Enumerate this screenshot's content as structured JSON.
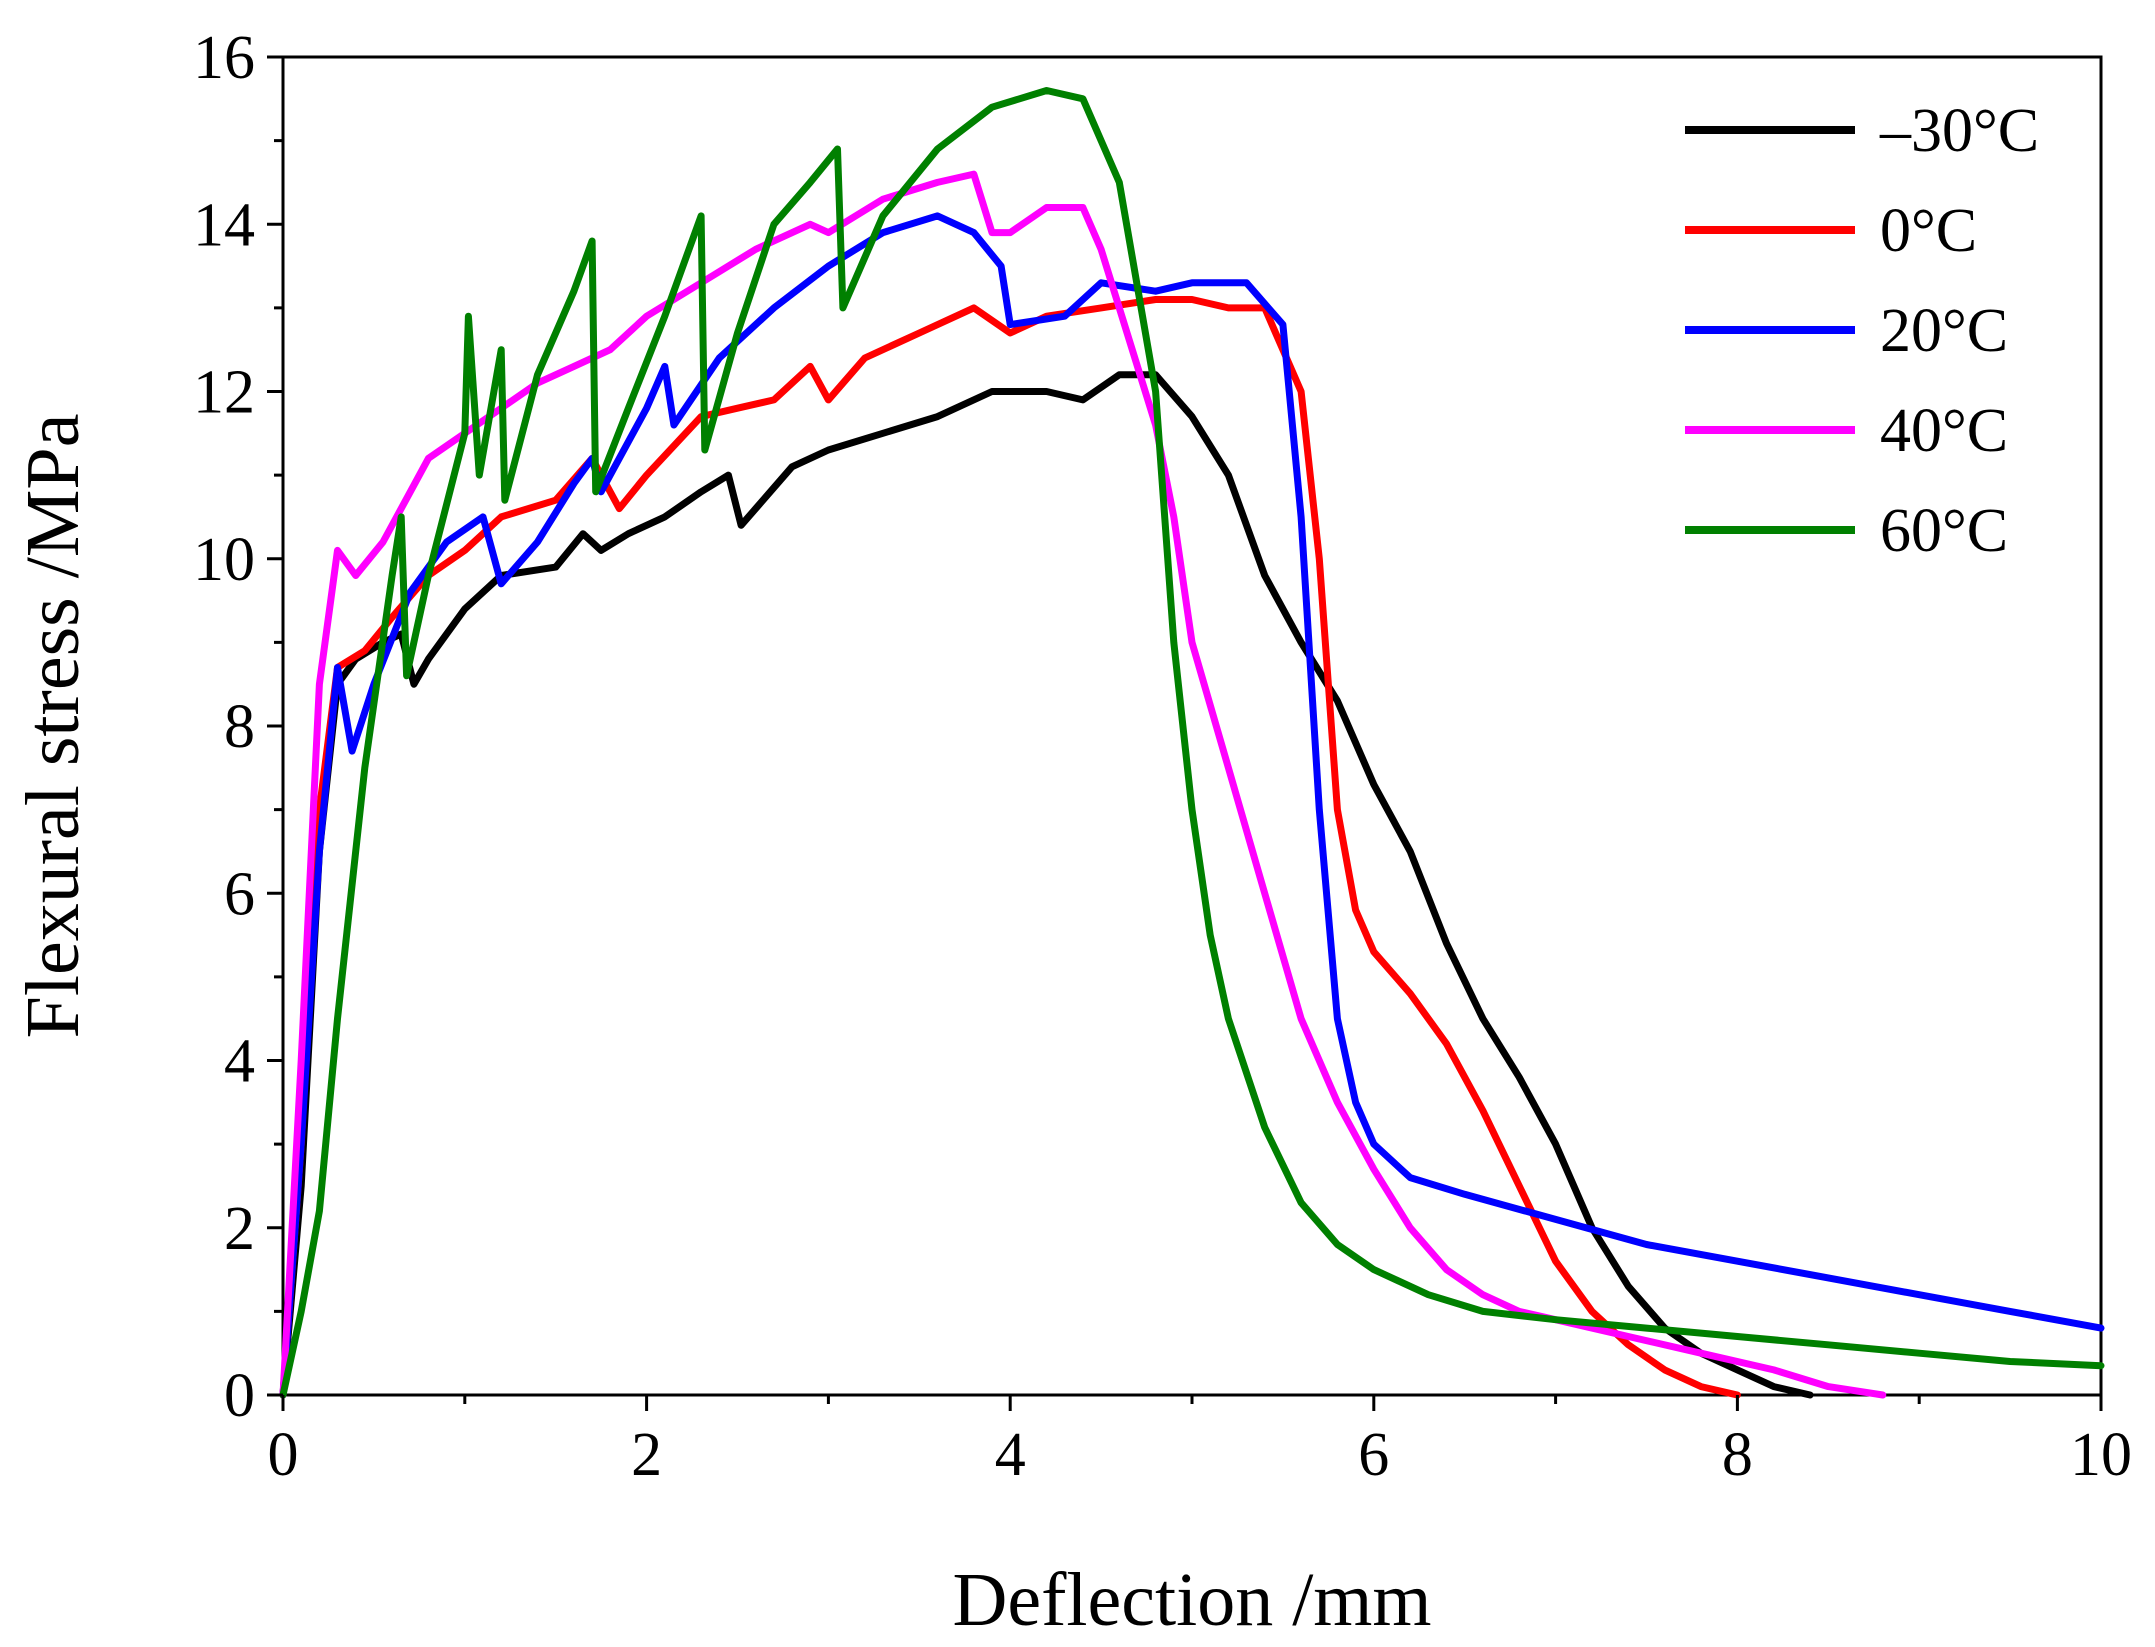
{
  "chart_data": {
    "type": "line",
    "title": "",
    "xlabel": "Deflection /mm",
    "ylabel": "Flexural stress /MPa",
    "xlim": [
      0,
      10
    ],
    "ylim": [
      0,
      16
    ],
    "x_ticks": [
      "0",
      "2",
      "4",
      "6",
      "8",
      "10"
    ],
    "y_ticks": [
      "0",
      "2",
      "4",
      "6",
      "8",
      "10",
      "12",
      "14",
      "16"
    ],
    "grid": false,
    "legend_position": "top-right",
    "series": [
      {
        "name": "–30°C",
        "color": "#000000",
        "points": [
          [
            0,
            0
          ],
          [
            0.1,
            2.5
          ],
          [
            0.2,
            6.5
          ],
          [
            0.3,
            8.5
          ],
          [
            0.4,
            8.8
          ],
          [
            0.55,
            9.0
          ],
          [
            0.65,
            9.1
          ],
          [
            0.72,
            8.5
          ],
          [
            0.8,
            8.8
          ],
          [
            1.0,
            9.4
          ],
          [
            1.2,
            9.8
          ],
          [
            1.5,
            9.9
          ],
          [
            1.65,
            10.3
          ],
          [
            1.75,
            10.1
          ],
          [
            1.9,
            10.3
          ],
          [
            2.1,
            10.5
          ],
          [
            2.3,
            10.8
          ],
          [
            2.45,
            11.0
          ],
          [
            2.52,
            10.4
          ],
          [
            2.6,
            10.6
          ],
          [
            2.8,
            11.1
          ],
          [
            3.0,
            11.3
          ],
          [
            3.3,
            11.5
          ],
          [
            3.6,
            11.7
          ],
          [
            3.9,
            12.0
          ],
          [
            4.2,
            12.0
          ],
          [
            4.4,
            11.9
          ],
          [
            4.6,
            12.2
          ],
          [
            4.8,
            12.2
          ],
          [
            5.0,
            11.7
          ],
          [
            5.2,
            11.0
          ],
          [
            5.4,
            9.8
          ],
          [
            5.6,
            9.0
          ],
          [
            5.8,
            8.3
          ],
          [
            6.0,
            7.3
          ],
          [
            6.2,
            6.5
          ],
          [
            6.4,
            5.4
          ],
          [
            6.6,
            4.5
          ],
          [
            6.8,
            3.8
          ],
          [
            7.0,
            3.0
          ],
          [
            7.2,
            2.0
          ],
          [
            7.4,
            1.3
          ],
          [
            7.6,
            0.8
          ],
          [
            7.8,
            0.5
          ],
          [
            8.0,
            0.3
          ],
          [
            8.2,
            0.1
          ],
          [
            8.4,
            0.0
          ]
        ]
      },
      {
        "name": "0°C",
        "color": "#ff0000",
        "points": [
          [
            0,
            0
          ],
          [
            0.1,
            3.0
          ],
          [
            0.2,
            7.0
          ],
          [
            0.3,
            8.7
          ],
          [
            0.45,
            8.9
          ],
          [
            0.6,
            9.3
          ],
          [
            0.8,
            9.8
          ],
          [
            1.0,
            10.1
          ],
          [
            1.2,
            10.5
          ],
          [
            1.5,
            10.7
          ],
          [
            1.7,
            11.2
          ],
          [
            1.85,
            10.6
          ],
          [
            2.0,
            11.0
          ],
          [
            2.3,
            11.7
          ],
          [
            2.5,
            11.8
          ],
          [
            2.7,
            11.9
          ],
          [
            2.9,
            12.3
          ],
          [
            3.0,
            11.9
          ],
          [
            3.2,
            12.4
          ],
          [
            3.5,
            12.7
          ],
          [
            3.8,
            13.0
          ],
          [
            4.0,
            12.7
          ],
          [
            4.2,
            12.9
          ],
          [
            4.5,
            13.0
          ],
          [
            4.8,
            13.1
          ],
          [
            5.0,
            13.1
          ],
          [
            5.2,
            13.0
          ],
          [
            5.4,
            13.0
          ],
          [
            5.6,
            12.0
          ],
          [
            5.7,
            10.0
          ],
          [
            5.8,
            7.0
          ],
          [
            5.9,
            5.8
          ],
          [
            6.0,
            5.3
          ],
          [
            6.2,
            4.8
          ],
          [
            6.4,
            4.2
          ],
          [
            6.6,
            3.4
          ],
          [
            6.8,
            2.5
          ],
          [
            7.0,
            1.6
          ],
          [
            7.2,
            1.0
          ],
          [
            7.4,
            0.6
          ],
          [
            7.6,
            0.3
          ],
          [
            7.8,
            0.1
          ],
          [
            8.0,
            0.0
          ]
        ]
      },
      {
        "name": "20°C",
        "color": "#0000ff",
        "points": [
          [
            0,
            0
          ],
          [
            0.1,
            3.0
          ],
          [
            0.2,
            6.5
          ],
          [
            0.3,
            8.7
          ],
          [
            0.38,
            7.7
          ],
          [
            0.5,
            8.5
          ],
          [
            0.7,
            9.6
          ],
          [
            0.9,
            10.2
          ],
          [
            1.1,
            10.5
          ],
          [
            1.2,
            9.7
          ],
          [
            1.4,
            10.2
          ],
          [
            1.6,
            10.9
          ],
          [
            1.7,
            11.2
          ],
          [
            1.75,
            10.8
          ],
          [
            2.0,
            11.8
          ],
          [
            2.1,
            12.3
          ],
          [
            2.15,
            11.6
          ],
          [
            2.4,
            12.4
          ],
          [
            2.7,
            13.0
          ],
          [
            3.0,
            13.5
          ],
          [
            3.3,
            13.9
          ],
          [
            3.6,
            14.1
          ],
          [
            3.8,
            13.9
          ],
          [
            3.95,
            13.5
          ],
          [
            4.0,
            12.8
          ],
          [
            4.3,
            12.9
          ],
          [
            4.5,
            13.3
          ],
          [
            4.8,
            13.2
          ],
          [
            5.0,
            13.3
          ],
          [
            5.3,
            13.3
          ],
          [
            5.5,
            12.8
          ],
          [
            5.6,
            10.5
          ],
          [
            5.7,
            7.0
          ],
          [
            5.8,
            4.5
          ],
          [
            5.9,
            3.5
          ],
          [
            6.0,
            3.0
          ],
          [
            6.2,
            2.6
          ],
          [
            6.5,
            2.4
          ],
          [
            7.0,
            2.1
          ],
          [
            7.5,
            1.8
          ],
          [
            8.0,
            1.6
          ],
          [
            8.5,
            1.4
          ],
          [
            9.0,
            1.2
          ],
          [
            9.5,
            1.0
          ],
          [
            10.0,
            0.8
          ]
        ]
      },
      {
        "name": "40°C",
        "color": "#ff00ff",
        "points": [
          [
            0,
            0
          ],
          [
            0.1,
            4.0
          ],
          [
            0.2,
            8.5
          ],
          [
            0.3,
            10.1
          ],
          [
            0.4,
            9.8
          ],
          [
            0.55,
            10.2
          ],
          [
            0.7,
            10.8
          ],
          [
            0.8,
            11.2
          ],
          [
            1.0,
            11.5
          ],
          [
            1.2,
            11.8
          ],
          [
            1.4,
            12.1
          ],
          [
            1.6,
            12.3
          ],
          [
            1.8,
            12.5
          ],
          [
            2.0,
            12.9
          ],
          [
            2.3,
            13.3
          ],
          [
            2.6,
            13.7
          ],
          [
            2.9,
            14.0
          ],
          [
            3.0,
            13.9
          ],
          [
            3.3,
            14.3
          ],
          [
            3.6,
            14.5
          ],
          [
            3.8,
            14.6
          ],
          [
            3.9,
            13.9
          ],
          [
            4.0,
            13.9
          ],
          [
            4.2,
            14.2
          ],
          [
            4.4,
            14.2
          ],
          [
            4.5,
            13.7
          ],
          [
            4.6,
            13.0
          ],
          [
            4.8,
            11.6
          ],
          [
            4.9,
            10.5
          ],
          [
            5.0,
            9.0
          ],
          [
            5.2,
            7.5
          ],
          [
            5.4,
            6.0
          ],
          [
            5.6,
            4.5
          ],
          [
            5.8,
            3.5
          ],
          [
            6.0,
            2.7
          ],
          [
            6.2,
            2.0
          ],
          [
            6.4,
            1.5
          ],
          [
            6.6,
            1.2
          ],
          [
            6.8,
            1.0
          ],
          [
            7.0,
            0.9
          ],
          [
            7.4,
            0.7
          ],
          [
            7.8,
            0.5
          ],
          [
            8.2,
            0.3
          ],
          [
            8.5,
            0.1
          ],
          [
            8.8,
            0.0
          ]
        ]
      },
      {
        "name": "60°C",
        "color": "#008000",
        "points": [
          [
            0,
            0
          ],
          [
            0.1,
            1.0
          ],
          [
            0.2,
            2.2
          ],
          [
            0.3,
            4.5
          ],
          [
            0.45,
            7.5
          ],
          [
            0.6,
            9.8
          ],
          [
            0.65,
            10.5
          ],
          [
            0.68,
            8.6
          ],
          [
            0.8,
            9.8
          ],
          [
            1.0,
            11.5
          ],
          [
            1.02,
            12.9
          ],
          [
            1.08,
            11.0
          ],
          [
            1.2,
            12.5
          ],
          [
            1.22,
            10.7
          ],
          [
            1.4,
            12.2
          ],
          [
            1.6,
            13.2
          ],
          [
            1.7,
            13.8
          ],
          [
            1.72,
            10.8
          ],
          [
            1.9,
            11.8
          ],
          [
            2.1,
            12.9
          ],
          [
            2.3,
            14.1
          ],
          [
            2.32,
            11.3
          ],
          [
            2.5,
            12.7
          ],
          [
            2.7,
            14.0
          ],
          [
            2.9,
            14.5
          ],
          [
            3.05,
            14.9
          ],
          [
            3.08,
            13.0
          ],
          [
            3.3,
            14.1
          ],
          [
            3.6,
            14.9
          ],
          [
            3.9,
            15.4
          ],
          [
            4.2,
            15.6
          ],
          [
            4.4,
            15.5
          ],
          [
            4.6,
            14.5
          ],
          [
            4.8,
            12.0
          ],
          [
            4.9,
            9.0
          ],
          [
            5.0,
            7.0
          ],
          [
            5.1,
            5.5
          ],
          [
            5.2,
            4.5
          ],
          [
            5.4,
            3.2
          ],
          [
            5.6,
            2.3
          ],
          [
            5.8,
            1.8
          ],
          [
            6.0,
            1.5
          ],
          [
            6.3,
            1.2
          ],
          [
            6.6,
            1.0
          ],
          [
            7.0,
            0.9
          ],
          [
            7.5,
            0.8
          ],
          [
            8.0,
            0.7
          ],
          [
            8.5,
            0.6
          ],
          [
            9.0,
            0.5
          ],
          [
            9.5,
            0.4
          ],
          [
            10.0,
            0.35
          ]
        ]
      }
    ]
  }
}
